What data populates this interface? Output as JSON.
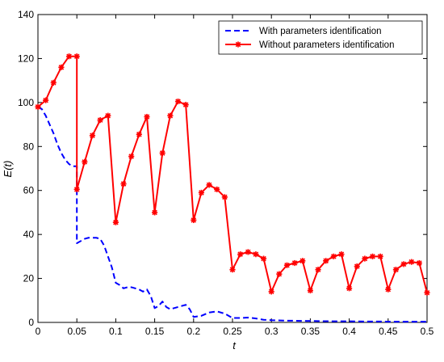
{
  "chart_data": {
    "type": "line",
    "xlabel": "t",
    "ylabel": "E(t)",
    "xlim": [
      0,
      0.5
    ],
    "ylim": [
      0,
      140
    ],
    "xticks": [
      {
        "v": 0,
        "label": "0"
      },
      {
        "v": 0.05,
        "label": "0.05"
      },
      {
        "v": 0.1,
        "label": "0.1"
      },
      {
        "v": 0.15,
        "label": "0.15"
      },
      {
        "v": 0.2,
        "label": "0.2"
      },
      {
        "v": 0.25,
        "label": "0.25"
      },
      {
        "v": 0.3,
        "label": "0.3"
      },
      {
        "v": 0.35,
        "label": "0.35"
      },
      {
        "v": 0.4,
        "label": "0.4"
      },
      {
        "v": 0.45,
        "label": "0.45"
      },
      {
        "v": 0.5,
        "label": "0.5"
      }
    ],
    "yticks": [
      {
        "v": 0,
        "label": "0"
      },
      {
        "v": 20,
        "label": "20"
      },
      {
        "v": 40,
        "label": "40"
      },
      {
        "v": 60,
        "label": "60"
      },
      {
        "v": 80,
        "label": "80"
      },
      {
        "v": 100,
        "label": "100"
      },
      {
        "v": 120,
        "label": "120"
      },
      {
        "v": 140,
        "label": "140"
      }
    ],
    "grid": false,
    "legend_position": "top-right",
    "series": [
      {
        "name": "With parameters identification",
        "color": "#0000ff",
        "style": "dashed",
        "marker": "none",
        "x": [
          0,
          0.005,
          0.01,
          0.015,
          0.02,
          0.025,
          0.03,
          0.035,
          0.04,
          0.045,
          0.05,
          0.05,
          0.055,
          0.06,
          0.065,
          0.07,
          0.075,
          0.08,
          0.085,
          0.09,
          0.095,
          0.1,
          0.105,
          0.11,
          0.115,
          0.12,
          0.125,
          0.13,
          0.135,
          0.14,
          0.145,
          0.15,
          0.155,
          0.16,
          0.165,
          0.17,
          0.175,
          0.18,
          0.185,
          0.19,
          0.195,
          0.2,
          0.21,
          0.22,
          0.23,
          0.24,
          0.25,
          0.26,
          0.27,
          0.28,
          0.29,
          0.3,
          0.32,
          0.34,
          0.36,
          0.38,
          0.4,
          0.42,
          0.44,
          0.46,
          0.48,
          0.5
        ],
        "y": [
          98,
          97,
          94,
          90,
          86,
          81,
          77,
          74,
          72,
          71,
          71,
          36,
          37,
          38,
          38.5,
          38.5,
          38.5,
          38,
          35,
          30,
          25,
          18,
          17,
          15.5,
          16,
          16,
          15.5,
          15,
          14,
          15,
          12,
          6.5,
          7.5,
          9.5,
          7,
          6,
          6.5,
          7,
          7.5,
          8,
          6,
          2.5,
          3,
          4.5,
          5,
          4,
          2,
          2,
          2.2,
          1.8,
          1.2,
          1,
          0.8,
          0.7,
          0.6,
          0.5,
          0.5,
          0.4,
          0.4,
          0.3,
          0.3,
          0.3
        ]
      },
      {
        "name": "Without parameters identification",
        "color": "#ff0000",
        "style": "solid",
        "marker": "asterisk",
        "x": [
          0,
          0.01,
          0.02,
          0.03,
          0.04,
          0.05,
          0.05,
          0.06,
          0.07,
          0.08,
          0.09,
          0.1,
          0.11,
          0.12,
          0.13,
          0.14,
          0.15,
          0.16,
          0.17,
          0.18,
          0.19,
          0.2,
          0.21,
          0.22,
          0.23,
          0.24,
          0.25,
          0.26,
          0.27,
          0.28,
          0.29,
          0.3,
          0.31,
          0.32,
          0.33,
          0.34,
          0.35,
          0.36,
          0.37,
          0.38,
          0.39,
          0.4,
          0.41,
          0.42,
          0.43,
          0.44,
          0.45,
          0.46,
          0.47,
          0.48,
          0.49,
          0.5
        ],
        "y": [
          98,
          101,
          109,
          116,
          121,
          121,
          60.5,
          73,
          85,
          92,
          94,
          45.5,
          63,
          75.5,
          85.5,
          93.5,
          50,
          77,
          94,
          100.5,
          99,
          46.5,
          59,
          62.5,
          60.5,
          57,
          24,
          31,
          32,
          31,
          29,
          14,
          22,
          26,
          27,
          28,
          14.5,
          24,
          28,
          30,
          31,
          15.5,
          25.5,
          29,
          30,
          30,
          15,
          24,
          26.5,
          27.5,
          27,
          13.5
        ]
      }
    ]
  }
}
